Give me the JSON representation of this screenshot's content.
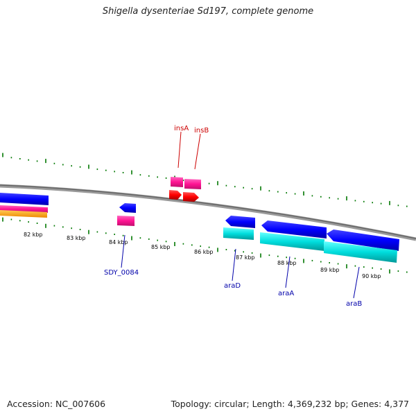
{
  "title": "Shigella dysenteriae Sd197, complete genome",
  "footer": {
    "accession": "Accession: NC_007606",
    "summary": "Topology: circular; Length: 4,369,232 bp; Genes: 4,377"
  },
  "ruler": {
    "unit": "kbp",
    "labels": [
      "82 kbp",
      "83 kbp",
      "84 kbp",
      "85 kbp",
      "86 kbp",
      "87 kbp",
      "88 kbp",
      "89 kbp",
      "90 kbp"
    ]
  },
  "genes": [
    {
      "name": "insA",
      "color": "#cc0000"
    },
    {
      "name": "insB",
      "color": "#cc0000"
    },
    {
      "name": "SDY_0084",
      "color": "#0000aa"
    },
    {
      "name": "araD",
      "color": "#0000aa"
    },
    {
      "name": "araA",
      "color": "#0000aa"
    },
    {
      "name": "araB",
      "color": "#0000aa"
    }
  ],
  "colors": {
    "backbone": "#808080",
    "tick": "#007700",
    "cds": "#0000ff",
    "rna_magenta": "#ff1493",
    "rna_cyan": "#00cccc",
    "orange": "#ff9900",
    "red": "#ff0000"
  }
}
